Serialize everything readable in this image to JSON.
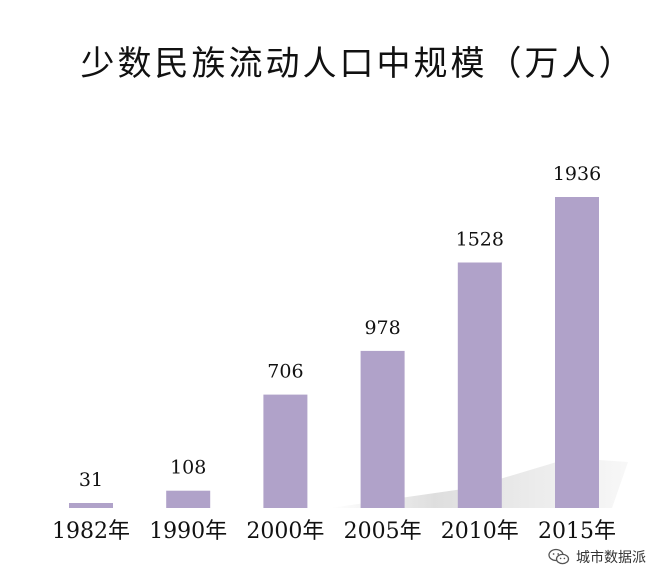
{
  "chart_data": {
    "type": "bar",
    "title": "少数民族流动人口中规模（万人）",
    "categories": [
      "1982年",
      "1990年",
      "2000年",
      "2005年",
      "2010年",
      "2015年"
    ],
    "values": [
      31,
      108,
      706,
      978,
      1528,
      1936
    ],
    "value_labels": [
      "31",
      "108",
      "706",
      "978",
      "1528",
      "1936"
    ],
    "xlabel": "",
    "ylabel": "",
    "ylim": [
      0,
      1936
    ],
    "grid": false,
    "legend": "none"
  },
  "colors": {
    "bar": "#b0a2c9",
    "text": "#111111"
  },
  "watermark": {
    "icon": "wechat-icon",
    "text": "城市数据派"
  }
}
